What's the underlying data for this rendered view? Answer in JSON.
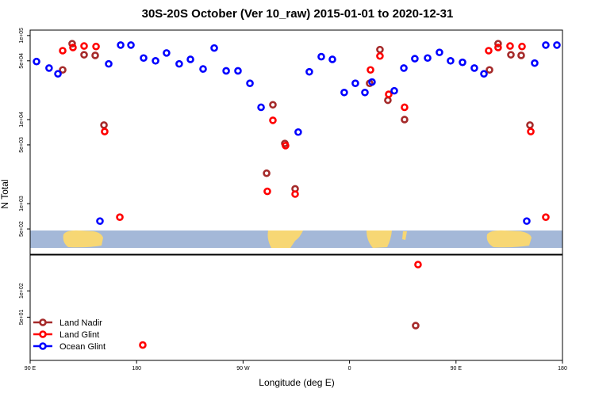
{
  "chart_data": [
    {
      "type": "scatter",
      "title": "30S-20S October (Ver 10_raw)   2015-01-01 to 2020-12-31",
      "ylabel": "N Total",
      "ylog": true,
      "xlim": [
        90,
        540
      ],
      "ylim": [
        250,
        116000
      ],
      "yticks": [
        {
          "value": 100000,
          "label": "1e+05"
        },
        {
          "value": 50000,
          "label": "5e+04"
        },
        {
          "value": 10000,
          "label": "1e+04"
        },
        {
          "value": 5000,
          "label": "5e+03"
        },
        {
          "value": 1000,
          "label": "1e+03"
        },
        {
          "value": 500,
          "label": "5e+02"
        }
      ],
      "legend": "lower left",
      "series": [
        {
          "name": "Land Nadir",
          "color": "#a52a2a",
          "x": [
            117.5,
            125.5,
            135.6,
            145,
            152.4,
            289.9,
            295.2,
            305.3,
            314,
            377,
            385.7,
            392.4,
            406.5,
            478.3,
            485.6,
            496.4,
            505.1,
            512.5
          ],
          "values": [
            39000,
            80000,
            59000,
            58000,
            8600,
            2300,
            15000,
            5200,
            1500,
            27000,
            68000,
            17000,
            10000,
            39000,
            80000,
            59000,
            58000,
            8600
          ]
        },
        {
          "name": "Land Glint",
          "color": "#ff0000",
          "x": [
            117.5,
            126.2,
            135.6,
            145.7,
            153,
            165.8,
            290.5,
            295.2,
            305.9,
            314,
            377.7,
            385.7,
            393.1,
            406.5,
            477.6,
            485.6,
            495.7,
            505.8,
            513.2,
            525.9
          ],
          "values": [
            66000,
            72000,
            75000,
            74000,
            7200,
            690,
            1400,
            9800,
            4900,
            1300,
            39000,
            57000,
            20000,
            14000,
            66000,
            72000,
            75000,
            74000,
            7200,
            690
          ]
        },
        {
          "name": "Ocean Glint",
          "color": "#0000ff",
          "x": [
            95.4,
            106,
            113.5,
            149,
            156.4,
            166.5,
            175.2,
            185.9,
            196,
            205.3,
            216,
            225.5,
            236.2,
            245.6,
            255.7,
            265.7,
            275.8,
            285.2,
            316.6,
            326,
            336.1,
            345.5,
            355.5,
            364.9,
            373,
            379,
            397.8,
            405.9,
            415.2,
            426,
            436,
            445.4,
            455.5,
            465.5,
            473.6,
            509.8,
            516.5,
            525.9,
            535.3
          ],
          "values": [
            49000,
            41000,
            35000,
            620,
            46000,
            77000,
            77000,
            54000,
            50000,
            62000,
            46000,
            52000,
            40000,
            71000,
            38000,
            38000,
            27000,
            14000,
            7100,
            37000,
            56000,
            52000,
            21000,
            27000,
            21000,
            28000,
            22000,
            41000,
            53000,
            54000,
            63000,
            50000,
            48000,
            41000,
            35000,
            620,
            47000,
            77000,
            77000
          ]
        }
      ]
    },
    {
      "type": "scatter",
      "xlabel": "Longitude (deg E)",
      "ylog": true,
      "xlim": [
        90,
        540
      ],
      "ylim": [
        16,
        257
      ],
      "xticks": [
        {
          "value": 90,
          "label": "90 E"
        },
        {
          "value": 180,
          "label": "180"
        },
        {
          "value": 270,
          "label": "90 W"
        },
        {
          "value": 360,
          "label": "0"
        },
        {
          "value": 450,
          "label": "90 E"
        },
        {
          "value": 540,
          "label": "180"
        }
      ],
      "yticks": [
        {
          "value": 100,
          "label": "1e+02"
        },
        {
          "value": 50,
          "label": "5e+01"
        }
      ],
      "series": [
        {
          "color": "#a52a2a",
          "x": [
            415.9
          ],
          "values": [
            40
          ]
        },
        {
          "color": "#ff0000",
          "x": [
            417.9,
            185.2
          ],
          "values": [
            200,
            24
          ]
        }
      ]
    }
  ]
}
